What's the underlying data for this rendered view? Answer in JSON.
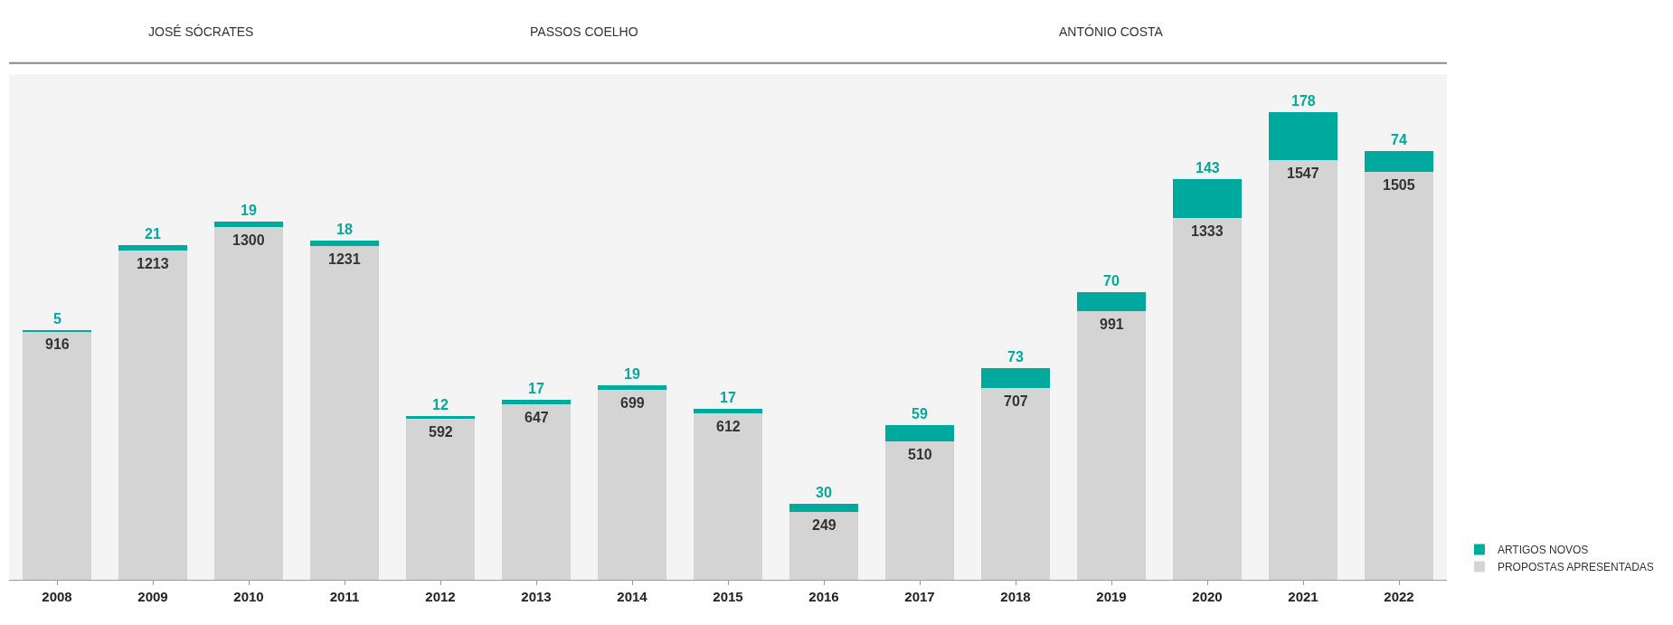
{
  "chart_data": {
    "type": "bar",
    "stacked": true,
    "data_labels": true,
    "legend": "bottom right",
    "grid": false,
    "categories": [
      "2008",
      "2009",
      "2010",
      "2011",
      "2012",
      "2013",
      "2014",
      "2015",
      "2016",
      "2017",
      "2018",
      "2019",
      "2020",
      "2021",
      "2022"
    ],
    "series": [
      {
        "name": "PROPOSTAS APRESENTADAS",
        "color": "#d4d4d4",
        "values": [
          916,
          1213,
          1300,
          1231,
          592,
          647,
          699,
          612,
          249,
          510,
          707,
          991,
          1333,
          1547,
          1505
        ]
      },
      {
        "name": "ARTIGOS NOVOS",
        "color": "#00a99d",
        "values": [
          5,
          21,
          19,
          18,
          12,
          17,
          19,
          17,
          30,
          59,
          73,
          70,
          143,
          178,
          74
        ]
      }
    ],
    "bands": [
      {
        "axis": "x",
        "from": "2008",
        "to": "2011",
        "label": "JOSÉ SÓCRATES",
        "color": "#f4f4f4"
      },
      {
        "axis": "x",
        "from": "2012",
        "to": "2015",
        "label": "PASSOS COELHO",
        "color": "#f4f4f4"
      },
      {
        "axis": "x",
        "from": "2016",
        "to": "2022",
        "label": "ANTÓNIO COSTA",
        "color": "#f4f4f4"
      }
    ]
  }
}
